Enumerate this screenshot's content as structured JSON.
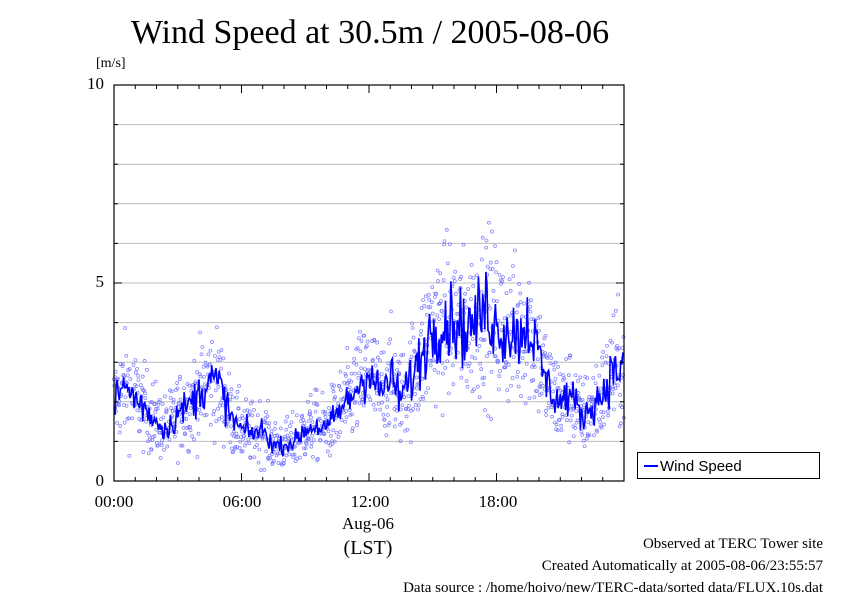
{
  "title": "Wind Speed at 30.5m / 2005-08-06",
  "ylabel": "[m/s]",
  "date_label": "Aug-06",
  "tz_label": "(LST)",
  "legend": {
    "label": "Wind Speed",
    "color": "#0000ff"
  },
  "notes": {
    "site": "Observed at TERC Tower site",
    "created": "Created Automatically at 2005-08-06/23:55:57",
    "source": "Data source : /home/hoivo/new/TERC-data/sorted  data/FLUX.10s.dat"
  },
  "colors": {
    "line": "#0000ff",
    "points": "#6a6aff",
    "grid": "#bcbcbc"
  },
  "chart_data": {
    "type": "line",
    "title": "Wind Speed at 30.5m / 2005-08-06",
    "ylabel": "[m/s]",
    "xlabel": "(LST)",
    "ylim": [
      0,
      10
    ],
    "xlim_hours": [
      0,
      24
    ],
    "y_ticks": [
      "0",
      "5",
      "10"
    ],
    "x_ticks": [
      "00:00",
      "06:00",
      "12:00",
      "18:00"
    ],
    "grid": true,
    "legend_position": "right, outside plot",
    "series": [
      {
        "name": "Wind Speed",
        "x_hours": [
          0,
          0.5,
          1,
          1.5,
          2,
          2.5,
          3,
          3.5,
          4,
          4.5,
          5,
          5.5,
          6,
          6.5,
          7,
          7.5,
          8,
          8.5,
          9,
          9.5,
          10,
          10.5,
          11,
          11.5,
          12,
          12.5,
          13,
          13.5,
          14,
          14.5,
          15,
          15.5,
          16,
          16.5,
          17,
          17.5,
          18,
          18.5,
          19,
          19.5,
          20,
          20.5,
          21,
          21.5,
          22,
          22.5,
          23,
          23.5
        ],
        "values": [
          2.0,
          2.4,
          2.1,
          1.8,
          1.5,
          1.3,
          1.7,
          1.9,
          2.2,
          2.6,
          2.4,
          1.6,
          1.3,
          1.2,
          1.3,
          0.9,
          0.9,
          1.0,
          1.3,
          1.4,
          1.3,
          1.7,
          2.0,
          2.4,
          2.8,
          2.2,
          2.6,
          2.1,
          2.6,
          3.2,
          3.9,
          4.0,
          4.1,
          3.8,
          4.0,
          4.4,
          3.9,
          3.8,
          3.7,
          4.0,
          3.1,
          2.3,
          2.0,
          2.2,
          1.6,
          1.9,
          2.2,
          2.8
        ]
      }
    ]
  }
}
